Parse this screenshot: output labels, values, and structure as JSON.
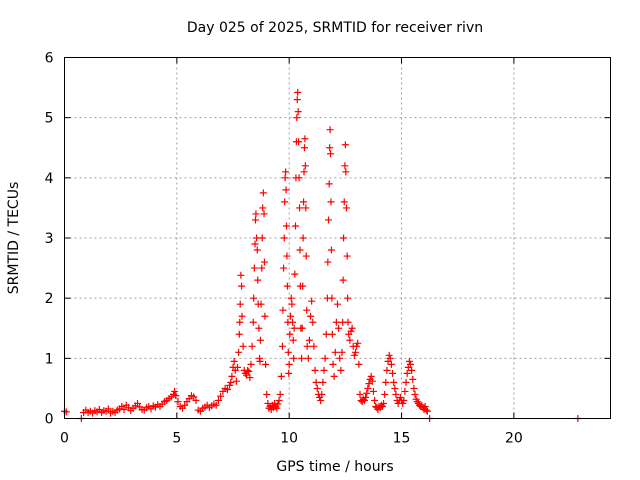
{
  "chart_data": {
    "type": "scatter",
    "title": "Day 025 of 2025, SRMTID for receiver rivn",
    "xlabel": "GPS time / hours",
    "ylabel": "SRMTID / TECUs",
    "xlim": [
      0,
      24.3
    ],
    "ylim": [
      0,
      6
    ],
    "xticks": [
      0,
      5,
      10,
      15,
      20
    ],
    "yticks": [
      0,
      1,
      2,
      3,
      4,
      5,
      6
    ],
    "grid": true,
    "marker": "+",
    "color": "#ff0000",
    "series": [
      {
        "points": [
          [
            0.0,
            0.12
          ],
          [
            0.08,
            0.11
          ],
          [
            0.75,
            0.0
          ],
          [
            0.85,
            0.1
          ],
          [
            0.95,
            0.14
          ],
          [
            1.05,
            0.1
          ],
          [
            1.15,
            0.12
          ],
          [
            1.25,
            0.09
          ],
          [
            1.35,
            0.13
          ],
          [
            1.45,
            0.11
          ],
          [
            1.55,
            0.15
          ],
          [
            1.65,
            0.1
          ],
          [
            1.75,
            0.13
          ],
          [
            1.85,
            0.12
          ],
          [
            1.95,
            0.16
          ],
          [
            2.05,
            0.09
          ],
          [
            2.15,
            0.12
          ],
          [
            2.25,
            0.1
          ],
          [
            2.35,
            0.14
          ],
          [
            2.45,
            0.16
          ],
          [
            2.55,
            0.2
          ],
          [
            2.65,
            0.15
          ],
          [
            2.75,
            0.22
          ],
          [
            2.85,
            0.18
          ],
          [
            2.95,
            0.13
          ],
          [
            3.05,
            0.17
          ],
          [
            3.15,
            0.21
          ],
          [
            3.25,
            0.25
          ],
          [
            3.35,
            0.19
          ],
          [
            3.45,
            0.15
          ],
          [
            3.55,
            0.14
          ],
          [
            3.65,
            0.18
          ],
          [
            3.75,
            0.2
          ],
          [
            3.85,
            0.16
          ],
          [
            3.95,
            0.21
          ],
          [
            4.05,
            0.19
          ],
          [
            4.15,
            0.23
          ],
          [
            4.25,
            0.2
          ],
          [
            4.35,
            0.24
          ],
          [
            4.45,
            0.28
          ],
          [
            4.55,
            0.3
          ],
          [
            4.65,
            0.33
          ],
          [
            4.75,
            0.36
          ],
          [
            4.85,
            0.4
          ],
          [
            4.9,
            0.45
          ],
          [
            4.95,
            0.38
          ],
          [
            5.05,
            0.28
          ],
          [
            5.15,
            0.2
          ],
          [
            5.25,
            0.17
          ],
          [
            5.35,
            0.22
          ],
          [
            5.45,
            0.28
          ],
          [
            5.55,
            0.33
          ],
          [
            5.65,
            0.38
          ],
          [
            5.75,
            0.36
          ],
          [
            5.85,
            0.3
          ],
          [
            5.95,
            0.14
          ],
          [
            6.05,
            0.12
          ],
          [
            6.15,
            0.17
          ],
          [
            6.25,
            0.19
          ],
          [
            6.35,
            0.22
          ],
          [
            6.45,
            0.18
          ],
          [
            6.55,
            0.21
          ],
          [
            6.65,
            0.24
          ],
          [
            6.75,
            0.22
          ],
          [
            6.85,
            0.3
          ],
          [
            6.95,
            0.37
          ],
          [
            7.05,
            0.45
          ],
          [
            7.15,
            0.5
          ],
          [
            7.25,
            0.48
          ],
          [
            7.35,
            0.55
          ],
          [
            7.4,
            0.6
          ],
          [
            7.45,
            0.7
          ],
          [
            7.5,
            0.85
          ],
          [
            7.55,
            0.95
          ],
          [
            7.6,
            0.8
          ],
          [
            7.65,
            0.62
          ],
          [
            7.7,
            0.85
          ],
          [
            7.75,
            1.1
          ],
          [
            7.78,
            1.4
          ],
          [
            7.8,
            1.6
          ],
          [
            7.82,
            1.9
          ],
          [
            7.85,
            2.38
          ],
          [
            7.88,
            2.2
          ],
          [
            7.9,
            1.7
          ],
          [
            7.95,
            1.2
          ],
          [
            8.0,
            0.8
          ],
          [
            8.05,
            0.75
          ],
          [
            8.1,
            0.72
          ],
          [
            8.15,
            0.8
          ],
          [
            8.2,
            0.78
          ],
          [
            8.25,
            0.68
          ],
          [
            8.3,
            0.9
          ],
          [
            8.35,
            1.2
          ],
          [
            8.4,
            1.6
          ],
          [
            8.42,
            2.0
          ],
          [
            8.45,
            2.5
          ],
          [
            8.48,
            2.9
          ],
          [
            8.5,
            3.3
          ],
          [
            8.52,
            3.4
          ],
          [
            8.55,
            3.0
          ],
          [
            8.58,
            2.8
          ],
          [
            8.6,
            2.3
          ],
          [
            8.62,
            1.9
          ],
          [
            8.65,
            1.5
          ],
          [
            8.68,
            1.0
          ],
          [
            8.7,
            0.95
          ],
          [
            8.72,
            1.3
          ],
          [
            8.75,
            1.9
          ],
          [
            8.78,
            2.5
          ],
          [
            8.8,
            3.0
          ],
          [
            8.82,
            3.5
          ],
          [
            8.85,
            3.75
          ],
          [
            8.88,
            3.4
          ],
          [
            8.9,
            2.6
          ],
          [
            8.92,
            1.7
          ],
          [
            8.95,
            0.9
          ],
          [
            9.0,
            0.4
          ],
          [
            9.05,
            0.25
          ],
          [
            9.1,
            0.17
          ],
          [
            9.15,
            0.2
          ],
          [
            9.2,
            0.15
          ],
          [
            9.25,
            0.22
          ],
          [
            9.3,
            0.18
          ],
          [
            9.35,
            0.25
          ],
          [
            9.4,
            0.2
          ],
          [
            9.45,
            0.17
          ],
          [
            9.5,
            0.24
          ],
          [
            9.55,
            0.3
          ],
          [
            9.6,
            0.4
          ],
          [
            9.65,
            0.7
          ],
          [
            9.7,
            1.2
          ],
          [
            9.72,
            1.8
          ],
          [
            9.75,
            2.5
          ],
          [
            9.78,
            3.0
          ],
          [
            9.8,
            3.6
          ],
          [
            9.82,
            4.0
          ],
          [
            9.84,
            4.1
          ],
          [
            9.86,
            3.8
          ],
          [
            9.88,
            3.2
          ],
          [
            9.9,
            2.7
          ],
          [
            9.92,
            2.2
          ],
          [
            9.94,
            1.6
          ],
          [
            9.96,
            1.1
          ],
          [
            9.98,
            0.75
          ],
          [
            10.0,
            0.9
          ],
          [
            10.03,
            1.4
          ],
          [
            10.06,
            1.7
          ],
          [
            10.09,
            2.0
          ],
          [
            10.12,
            1.9
          ],
          [
            10.15,
            1.6
          ],
          [
            10.18,
            1.3
          ],
          [
            10.2,
            1.0
          ],
          [
            10.22,
            1.5
          ],
          [
            10.25,
            2.4
          ],
          [
            10.28,
            3.2
          ],
          [
            10.3,
            4.0
          ],
          [
            10.32,
            4.6
          ],
          [
            10.34,
            5.0
          ],
          [
            10.36,
            5.3
          ],
          [
            10.38,
            5.42
          ],
          [
            10.4,
            5.1
          ],
          [
            10.42,
            4.6
          ],
          [
            10.44,
            4.0
          ],
          [
            10.46,
            3.5
          ],
          [
            10.48,
            2.8
          ],
          [
            10.5,
            2.2
          ],
          [
            10.52,
            1.5
          ],
          [
            10.55,
            1.0
          ],
          [
            10.58,
            1.5
          ],
          [
            10.6,
            2.2
          ],
          [
            10.62,
            3.0
          ],
          [
            10.64,
            3.6
          ],
          [
            10.66,
            4.1
          ],
          [
            10.68,
            4.5
          ],
          [
            10.7,
            4.65
          ],
          [
            10.72,
            4.2
          ],
          [
            10.74,
            3.5
          ],
          [
            10.76,
            2.7
          ],
          [
            10.78,
            1.8
          ],
          [
            10.8,
            1.2
          ],
          [
            10.85,
            1.0
          ],
          [
            10.9,
            1.3
          ],
          [
            10.95,
            1.7
          ],
          [
            11.0,
            1.95
          ],
          [
            11.05,
            1.6
          ],
          [
            11.1,
            1.2
          ],
          [
            11.15,
            0.8
          ],
          [
            11.2,
            0.6
          ],
          [
            11.25,
            0.5
          ],
          [
            11.3,
            0.4
          ],
          [
            11.35,
            0.35
          ],
          [
            11.4,
            0.3
          ],
          [
            11.45,
            0.4
          ],
          [
            11.5,
            0.6
          ],
          [
            11.55,
            0.8
          ],
          [
            11.6,
            1.0
          ],
          [
            11.65,
            1.4
          ],
          [
            11.7,
            2.0
          ],
          [
            11.72,
            2.6
          ],
          [
            11.75,
            3.3
          ],
          [
            11.78,
            3.9
          ],
          [
            11.8,
            4.5
          ],
          [
            11.82,
            4.8
          ],
          [
            11.84,
            4.4
          ],
          [
            11.86,
            3.6
          ],
          [
            11.88,
            2.8
          ],
          [
            11.9,
            2.0
          ],
          [
            11.92,
            1.4
          ],
          [
            11.95,
            0.9
          ],
          [
            12.0,
            0.7
          ],
          [
            12.05,
            1.1
          ],
          [
            12.1,
            1.6
          ],
          [
            12.15,
            1.9
          ],
          [
            12.2,
            1.5
          ],
          [
            12.25,
            1.0
          ],
          [
            12.3,
            0.8
          ],
          [
            12.35,
            1.1
          ],
          [
            12.38,
            1.6
          ],
          [
            12.4,
            2.3
          ],
          [
            12.42,
            3.0
          ],
          [
            12.45,
            3.6
          ],
          [
            12.48,
            4.2
          ],
          [
            12.5,
            4.55
          ],
          [
            12.52,
            4.1
          ],
          [
            12.55,
            3.5
          ],
          [
            12.58,
            2.7
          ],
          [
            12.6,
            2.0
          ],
          [
            12.62,
            1.6
          ],
          [
            12.65,
            1.4
          ],
          [
            12.7,
            1.3
          ],
          [
            12.75,
            1.45
          ],
          [
            12.8,
            1.5
          ],
          [
            12.85,
            1.2
          ],
          [
            12.9,
            1.05
          ],
          [
            12.95,
            1.1
          ],
          [
            13.0,
            1.2
          ],
          [
            13.05,
            1.25
          ],
          [
            13.1,
            0.9
          ],
          [
            13.15,
            0.4
          ],
          [
            13.2,
            0.3
          ],
          [
            13.25,
            0.28
          ],
          [
            13.3,
            0.32
          ],
          [
            13.35,
            0.3
          ],
          [
            13.4,
            0.35
          ],
          [
            13.45,
            0.42
          ],
          [
            13.5,
            0.5
          ],
          [
            13.55,
            0.58
          ],
          [
            13.6,
            0.65
          ],
          [
            13.65,
            0.7
          ],
          [
            13.7,
            0.62
          ],
          [
            13.75,
            0.45
          ],
          [
            13.8,
            0.3
          ],
          [
            13.85,
            0.2
          ],
          [
            13.9,
            0.18
          ],
          [
            13.95,
            0.15
          ],
          [
            14.0,
            0.2
          ],
          [
            14.05,
            0.18
          ],
          [
            14.1,
            0.22
          ],
          [
            14.15,
            0.2
          ],
          [
            14.2,
            0.25
          ],
          [
            14.25,
            0.4
          ],
          [
            14.3,
            0.6
          ],
          [
            14.35,
            0.8
          ],
          [
            14.4,
            0.95
          ],
          [
            14.45,
            1.05
          ],
          [
            14.5,
            1.0
          ],
          [
            14.55,
            0.9
          ],
          [
            14.6,
            0.75
          ],
          [
            14.65,
            0.6
          ],
          [
            14.7,
            0.5
          ],
          [
            14.75,
            0.4
          ],
          [
            14.8,
            0.3
          ],
          [
            14.85,
            0.25
          ],
          [
            14.9,
            0.3
          ],
          [
            14.95,
            0.35
          ],
          [
            15.0,
            0.3
          ],
          [
            15.05,
            0.25
          ],
          [
            15.1,
            0.3
          ],
          [
            15.15,
            0.45
          ],
          [
            15.2,
            0.6
          ],
          [
            15.25,
            0.75
          ],
          [
            15.3,
            0.85
          ],
          [
            15.35,
            0.95
          ],
          [
            15.4,
            0.9
          ],
          [
            15.45,
            0.8
          ],
          [
            15.5,
            0.65
          ],
          [
            15.55,
            0.5
          ],
          [
            15.6,
            0.4
          ],
          [
            15.65,
            0.32
          ],
          [
            15.7,
            0.28
          ],
          [
            15.75,
            0.25
          ],
          [
            15.8,
            0.22
          ],
          [
            15.85,
            0.2
          ],
          [
            15.9,
            0.22
          ],
          [
            15.95,
            0.18
          ],
          [
            16.0,
            0.15
          ],
          [
            16.05,
            0.2
          ],
          [
            16.1,
            0.14
          ],
          [
            16.15,
            0.12
          ],
          [
            16.25,
            0.0
          ],
          [
            22.85,
            0.0
          ]
        ]
      }
    ]
  }
}
